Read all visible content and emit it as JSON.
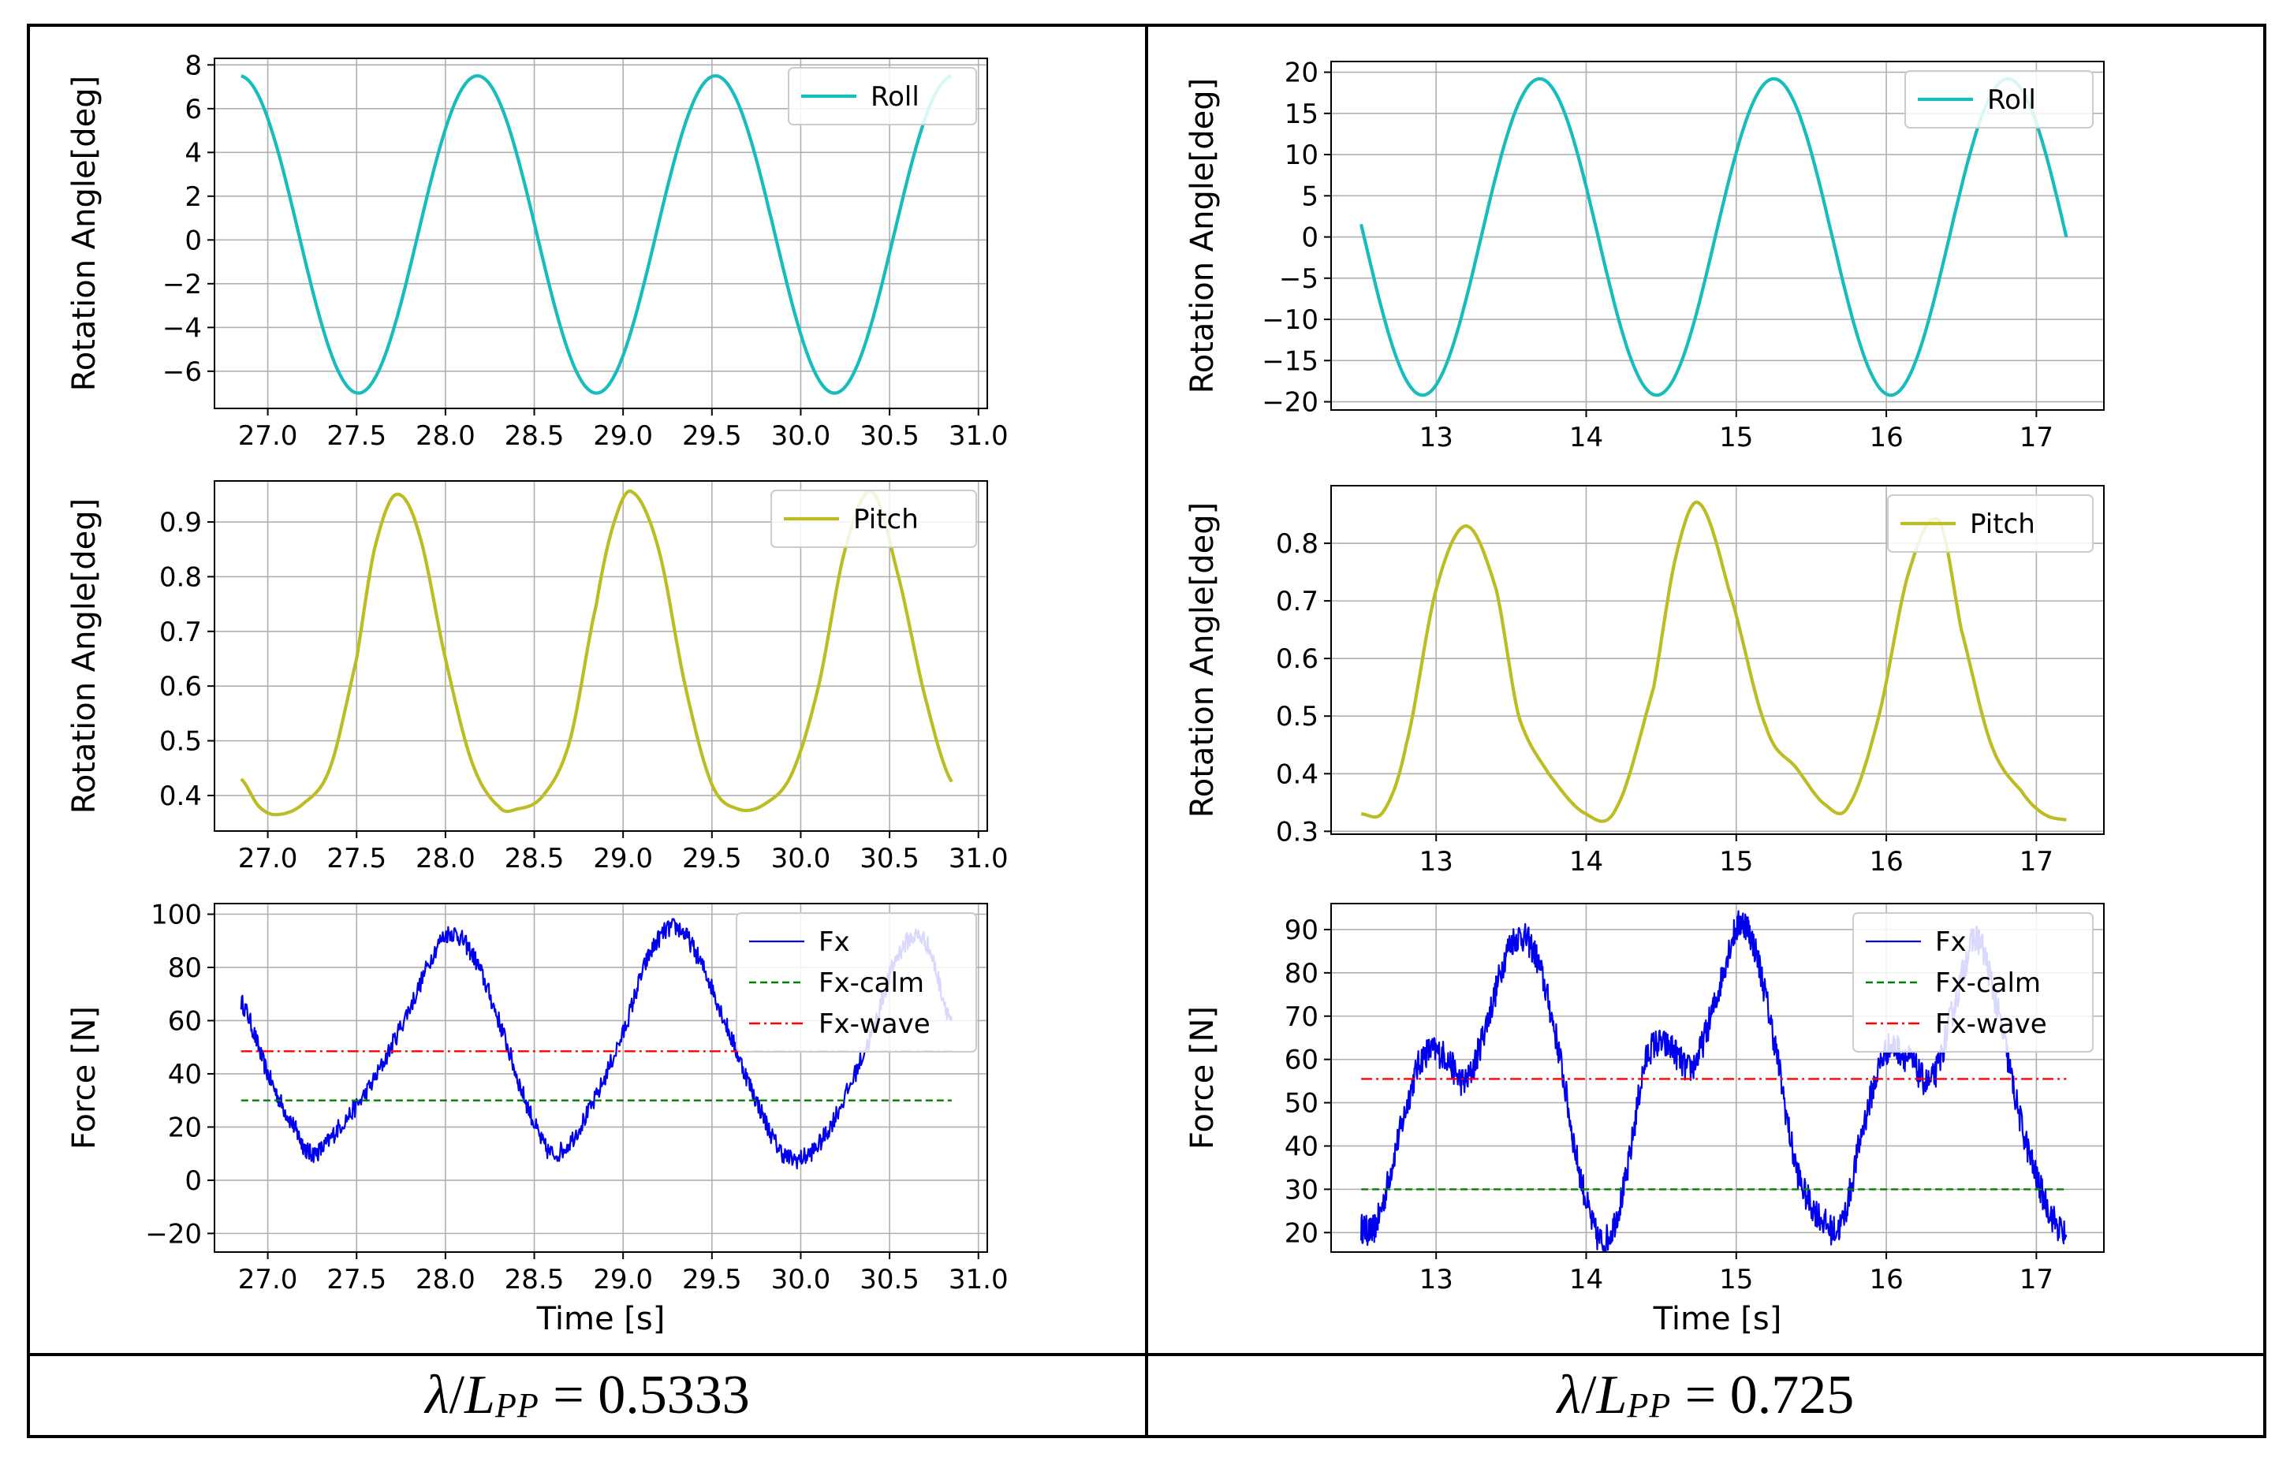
{
  "panels": [
    {
      "caption": {
        "var1": "λ",
        "slash": "/",
        "var2": "L",
        "sub": "PP",
        "eq": " = ",
        "value": "0.5333"
      },
      "charts": [
        {
          "type": "line",
          "ylabel": "Rotation Angle[deg]",
          "xlabel": "",
          "xlim": [
            26.7,
            31.05
          ],
          "ylim": [
            -7.7,
            8.3
          ],
          "xticks": [
            27.0,
            27.5,
            28.0,
            28.5,
            29.0,
            29.5,
            30.0,
            30.5,
            31.0
          ],
          "xtick_labels": [
            "27.0",
            "27.5",
            "28.0",
            "28.5",
            "29.0",
            "29.5",
            "30.0",
            "30.5",
            "31.0"
          ],
          "yticks": [
            -6,
            -4,
            -2,
            0,
            2,
            4,
            6,
            8
          ],
          "ytick_labels": [
            "−6",
            "−4",
            "−2",
            "0",
            "2",
            "4",
            "6",
            "8"
          ],
          "legend_position": "top-right",
          "series": [
            {
              "name": "Roll",
              "color": "#17bcbc",
              "style": "solid",
              "kind": "sine",
              "params": {
                "x0": 26.85,
                "x1": 30.85,
                "offset": 0.25,
                "amp": 7.25,
                "period": 1.34,
                "peak": 26.84
              }
            }
          ]
        },
        {
          "type": "line",
          "ylabel": "Rotation Angle[deg]",
          "xlabel": "",
          "xlim": [
            26.7,
            31.05
          ],
          "ylim": [
            0.335,
            0.975
          ],
          "xticks": [
            27.0,
            27.5,
            28.0,
            28.5,
            29.0,
            29.5,
            30.0,
            30.5,
            31.0
          ],
          "xtick_labels": [
            "27.0",
            "27.5",
            "28.0",
            "28.5",
            "29.0",
            "29.5",
            "30.0",
            "30.5",
            "31.0"
          ],
          "yticks": [
            0.4,
            0.5,
            0.6,
            0.7,
            0.8,
            0.9
          ],
          "ytick_labels": [
            "0.4",
            "0.5",
            "0.6",
            "0.7",
            "0.8",
            "0.9"
          ],
          "legend_position": "top-right",
          "series": [
            {
              "name": "Pitch",
              "color": "#bcbd22",
              "style": "solid",
              "kind": "points",
              "x": [
                26.85,
                26.95,
                27.05,
                27.2,
                27.35,
                27.5,
                27.6,
                27.72,
                27.85,
                28.0,
                28.15,
                28.3,
                28.4,
                28.55,
                28.7,
                28.85,
                28.95,
                29.05,
                29.2,
                29.35,
                29.5,
                29.65,
                29.8,
                29.95,
                30.1,
                30.25,
                30.4,
                30.55,
                30.7,
                30.85
              ],
              "y": [
                0.43,
                0.38,
                0.365,
                0.385,
                0.45,
                0.65,
                0.85,
                0.95,
                0.88,
                0.65,
                0.46,
                0.38,
                0.375,
                0.4,
                0.5,
                0.75,
                0.9,
                0.955,
                0.85,
                0.6,
                0.42,
                0.375,
                0.385,
                0.44,
                0.6,
                0.85,
                0.955,
                0.8,
                0.58,
                0.425
              ]
            }
          ]
        },
        {
          "type": "line",
          "ylabel": "Force [N]",
          "xlabel": "Time [s]",
          "xlim": [
            26.7,
            31.05
          ],
          "ylim": [
            -27,
            104
          ],
          "xticks": [
            27.0,
            27.5,
            28.0,
            28.5,
            29.0,
            29.5,
            30.0,
            30.5,
            31.0
          ],
          "xtick_labels": [
            "27.0",
            "27.5",
            "28.0",
            "28.5",
            "29.0",
            "29.5",
            "30.0",
            "30.5",
            "31.0"
          ],
          "yticks": [
            -20,
            0,
            20,
            40,
            60,
            80,
            100
          ],
          "ytick_labels": [
            "−20",
            "0",
            "20",
            "40",
            "60",
            "80",
            "100"
          ],
          "legend_position": "top-right",
          "series": [
            {
              "name": "Fx",
              "color": "#0000ee",
              "style": "solid",
              "kind": "noisy",
              "x": [
                26.85,
                27.0,
                27.15,
                27.25,
                27.4,
                27.6,
                27.8,
                28.0,
                28.15,
                28.3,
                28.45,
                28.6,
                28.8,
                29.0,
                29.15,
                29.3,
                29.45,
                29.6,
                29.75,
                29.9,
                30.05,
                30.2,
                30.4,
                30.55,
                30.7,
                30.85
              ],
              "y": [
                67,
                40,
                20,
                10,
                20,
                38,
                65,
                92,
                85,
                60,
                30,
                10,
                25,
                55,
                85,
                95,
                80,
                55,
                30,
                10,
                10,
                25,
                55,
                85,
                90,
                60
              ]
            },
            {
              "name": "Fx-calm",
              "color": "#008000",
              "style": "dashed",
              "kind": "constant",
              "value": 30,
              "x0": 26.85,
              "x1": 30.85
            },
            {
              "name": "Fx-wave",
              "color": "#ff0000",
              "style": "dashdot",
              "kind": "constant",
              "value": 48.5,
              "x0": 26.85,
              "x1": 30.85
            }
          ]
        }
      ]
    },
    {
      "caption": {
        "var1": "λ",
        "slash": "/",
        "var2": "L",
        "sub": "PP",
        "eq": " = ",
        "value": "0.725"
      },
      "charts": [
        {
          "type": "line",
          "ylabel": "Rotation Angle[deg]",
          "xlabel": "",
          "xlim": [
            12.3,
            17.45
          ],
          "ylim": [
            -21,
            21.3
          ],
          "xticks": [
            13,
            14,
            15,
            16,
            17
          ],
          "xtick_labels": [
            "13",
            "14",
            "15",
            "16",
            "17"
          ],
          "yticks": [
            -20,
            -15,
            -10,
            -5,
            0,
            5,
            10,
            15,
            20
          ],
          "ytick_labels": [
            "−20",
            "−15",
            "−10",
            "−5",
            "0",
            "5",
            "10",
            "15",
            "20"
          ],
          "legend_position": "top-right",
          "series": [
            {
              "name": "Roll",
              "color": "#17bcbc",
              "style": "solid",
              "kind": "sine",
              "params": {
                "x0": 12.5,
                "x1": 17.2,
                "offset": 0,
                "amp": 19.2,
                "period": 1.56,
                "peak": 13.69
              }
            }
          ]
        },
        {
          "type": "line",
          "ylabel": "Rotation Angle[deg]",
          "xlabel": "",
          "xlim": [
            12.3,
            17.45
          ],
          "ylim": [
            0.295,
            0.9
          ],
          "xticks": [
            13,
            14,
            15,
            16,
            17
          ],
          "xtick_labels": [
            "13",
            "14",
            "15",
            "16",
            "17"
          ],
          "yticks": [
            0.3,
            0.4,
            0.5,
            0.6,
            0.7,
            0.8
          ],
          "ytick_labels": [
            "0.3",
            "0.4",
            "0.5",
            "0.6",
            "0.7",
            "0.8"
          ],
          "legend_position": "top-right",
          "series": [
            {
              "name": "Pitch",
              "color": "#bcbd22",
              "style": "solid",
              "kind": "points",
              "x": [
                12.5,
                12.65,
                12.8,
                13.0,
                13.2,
                13.4,
                13.55,
                13.75,
                14.0,
                14.2,
                14.45,
                14.6,
                14.75,
                14.95,
                15.2,
                15.4,
                15.6,
                15.75,
                15.95,
                16.15,
                16.35,
                16.5,
                16.7,
                16.9,
                17.05,
                17.2
              ],
              "y": [
                0.33,
                0.335,
                0.45,
                0.72,
                0.83,
                0.72,
                0.5,
                0.4,
                0.33,
                0.34,
                0.55,
                0.78,
                0.87,
                0.72,
                0.48,
                0.41,
                0.345,
                0.345,
                0.5,
                0.75,
                0.84,
                0.65,
                0.45,
                0.37,
                0.33,
                0.32
              ]
            }
          ]
        },
        {
          "type": "line",
          "ylabel": "Force [N]",
          "xlabel": "Time [s]",
          "xlim": [
            12.3,
            17.45
          ],
          "ylim": [
            15.5,
            96
          ],
          "xticks": [
            13,
            14,
            15,
            16,
            17
          ],
          "xtick_labels": [
            "13",
            "14",
            "15",
            "16",
            "17"
          ],
          "yticks": [
            20,
            30,
            40,
            50,
            60,
            70,
            80,
            90
          ],
          "ytick_labels": [
            "20",
            "30",
            "40",
            "50",
            "60",
            "70",
            "80",
            "90"
          ],
          "legend_position": "top-right",
          "series": [
            {
              "name": "Fx",
              "color": "#0000ee",
              "style": "solid",
              "kind": "noisy",
              "x": [
                12.5,
                12.6,
                12.75,
                12.9,
                13.05,
                13.2,
                13.35,
                13.5,
                13.65,
                13.8,
                13.95,
                14.1,
                14.25,
                14.4,
                14.55,
                14.7,
                14.85,
                15.0,
                15.1,
                15.25,
                15.4,
                15.55,
                15.7,
                15.85,
                16.0,
                16.15,
                16.3,
                16.45,
                16.6,
                16.75,
                16.9,
                17.05,
                17.2
              ],
              "y": [
                21,
                22,
                42,
                60,
                61,
                55,
                70,
                87,
                85,
                65,
                35,
                18,
                30,
                60,
                63,
                58,
                72,
                90,
                88,
                65,
                35,
                24,
                22,
                45,
                62,
                60,
                55,
                72,
                88,
                70,
                45,
                28,
                19
              ]
            },
            {
              "name": "Fx-calm",
              "color": "#008000",
              "style": "dashed",
              "kind": "constant",
              "value": 30,
              "x0": 12.5,
              "x1": 17.2
            },
            {
              "name": "Fx-wave",
              "color": "#ff0000",
              "style": "dashdot",
              "kind": "constant",
              "value": 55.5,
              "x0": 12.5,
              "x1": 17.2
            }
          ]
        }
      ]
    }
  ]
}
